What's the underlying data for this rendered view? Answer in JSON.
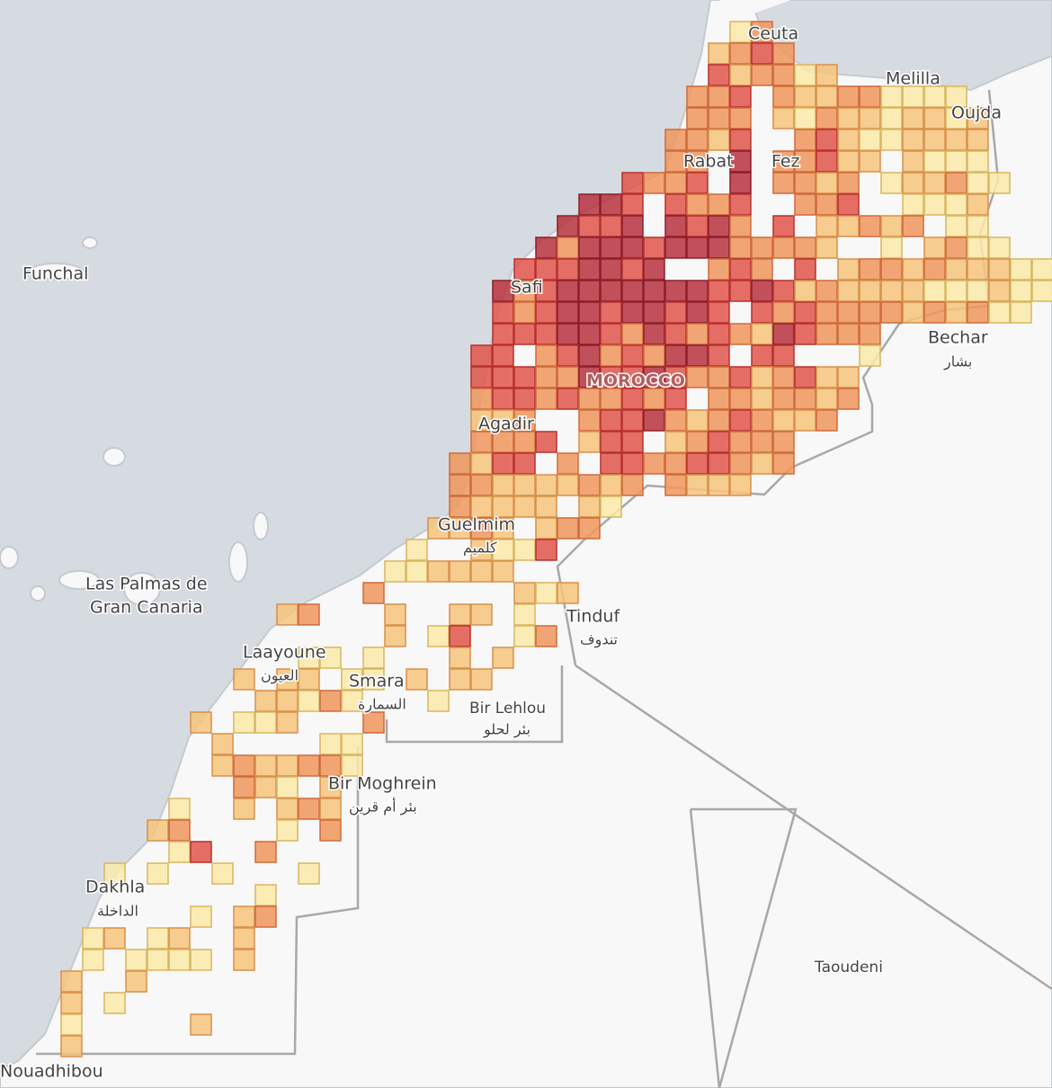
{
  "labels": {
    "ceuta": "Ceuta",
    "melilla": "Melilla",
    "oujda": "Oujda",
    "rabat": "Rabat",
    "fez": "Fez",
    "safi": "Safi",
    "morocco": "MOROCCO",
    "agadir": "Agadir",
    "guelmim": "Guelmim",
    "guelmim_ar": "كلميم",
    "tinduf": "Tinduf",
    "tinduf_ar": "تندوف",
    "bechar": "Bechar",
    "bechar_ar": "بشار",
    "funchal": "Funchal",
    "las_palmas": "Las Palmas de",
    "gran_canaria": "Gran Canaria",
    "laayoune": "Laayoune",
    "laayoune_ar": "العيون",
    "smara": "Smara",
    "smara_ar": "السمارة",
    "bir_lehlou": "Bir Lehlou",
    "bir_lehlou_ar": "بئر لحلو",
    "bir_moghrein": "Bir Moghrein",
    "bir_moghrein_ar": "بئر أم قرين",
    "dakhla": "Dakhla",
    "dakhla_ar": "الداخلة",
    "nouadhibou": "Nouadhibou",
    "taoudeni": "Taoudeni"
  }
}
